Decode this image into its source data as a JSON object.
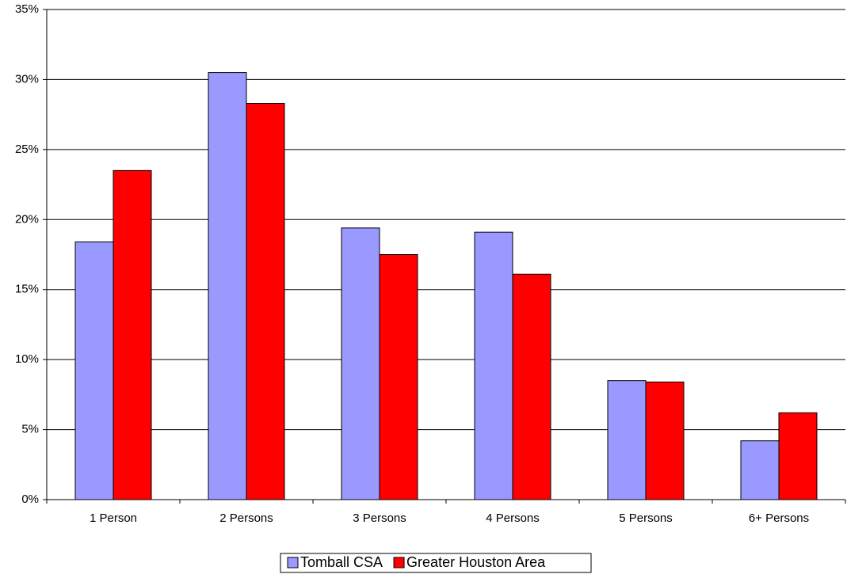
{
  "chart_data": {
    "type": "bar",
    "categories": [
      "1 Person",
      "2 Persons",
      "3 Persons",
      "4 Persons",
      "5 Persons",
      "6+ Persons"
    ],
    "series": [
      {
        "name": "Tomball CSA",
        "color": "#9999ff",
        "values": [
          18.4,
          30.5,
          19.4,
          19.1,
          8.5,
          4.2
        ]
      },
      {
        "name": "Greater Houston Area",
        "color": "#ff0000",
        "values": [
          23.5,
          28.3,
          17.5,
          16.1,
          8.4,
          6.2
        ]
      }
    ],
    "ylim": [
      0,
      35
    ],
    "yticks": [
      {
        "value": 0,
        "label": "0%"
      },
      {
        "value": 5,
        "label": "5%"
      },
      {
        "value": 10,
        "label": "10%"
      },
      {
        "value": 15,
        "label": "15%"
      },
      {
        "value": 20,
        "label": "20%"
      },
      {
        "value": 25,
        "label": "25%"
      },
      {
        "value": 30,
        "label": "30%"
      },
      {
        "value": 35,
        "label": "35%"
      }
    ],
    "grid": true,
    "legend": "bottom"
  }
}
